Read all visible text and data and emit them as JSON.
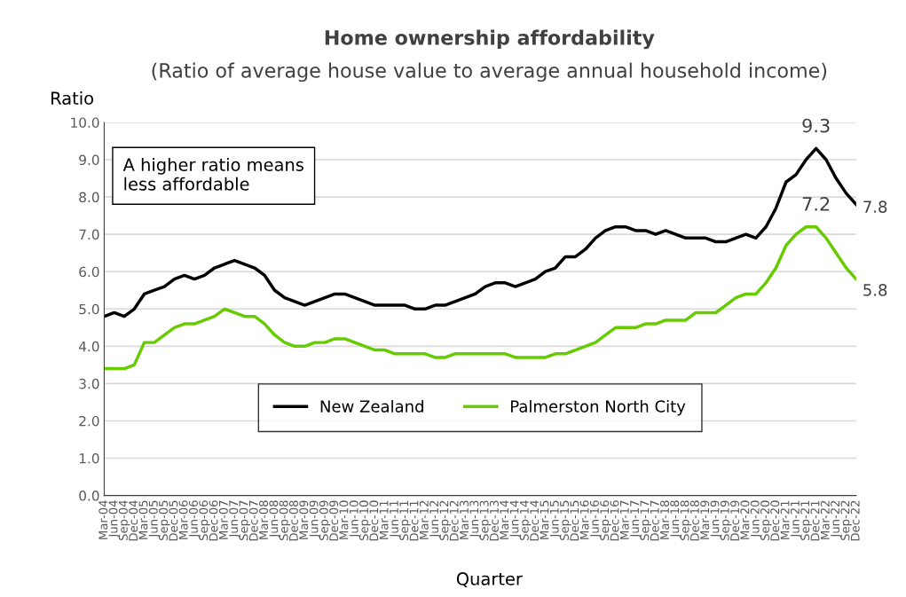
{
  "chart_data": {
    "type": "line",
    "title": "Home ownership affordability",
    "subtitle": "(Ratio of average house value to average annual household income)",
    "xlabel": "Quarter",
    "ylabel": "Ratio",
    "categories": [
      "Mar-04",
      "Jun-04",
      "Sep-04",
      "Dec-04",
      "Mar-05",
      "Jun-05",
      "Sep-05",
      "Dec-05",
      "Mar-06",
      "Jun-06",
      "Sep-06",
      "Dec-06",
      "Mar-07",
      "Jun-07",
      "Sep-07",
      "Dec-07",
      "Mar-08",
      "Jun-08",
      "Sep-08",
      "Dec-08",
      "Mar-09",
      "Jun-09",
      "Sep-09",
      "Dec-09",
      "Mar-10",
      "Jun-10",
      "Sep-10",
      "Dec-10",
      "Mar-11",
      "Jun-11",
      "Sep-11",
      "Dec-11",
      "Mar-12",
      "Jun-12",
      "Sep-12",
      "Dec-12",
      "Mar-13",
      "Jun-13",
      "Sep-13",
      "Dec-13",
      "Mar-14",
      "Jun-14",
      "Sep-14",
      "Dec-14",
      "Mar-15",
      "Jun-15",
      "Sep-15",
      "Dec-15",
      "Mar-16",
      "Jun-16",
      "Sep-16",
      "Dec-16",
      "Mar-17",
      "Jun-17",
      "Sep-17",
      "Dec-17",
      "Mar-18",
      "Jun-18",
      "Sep-18",
      "Dec-18",
      "Mar-19",
      "Jun-19",
      "Sep-19",
      "Dec-19",
      "Mar-20",
      "Jun-20",
      "Sep-20",
      "Dec-20",
      "Mar-21",
      "Jun-21",
      "Sep-21",
      "Dec-21",
      "Mar-22",
      "Jun-22",
      "Sep-22",
      "Dec-22"
    ],
    "series": [
      {
        "name": "New Zealand",
        "color": "#000000",
        "values": [
          4.8,
          4.9,
          4.8,
          5.0,
          5.4,
          5.5,
          5.6,
          5.8,
          5.9,
          5.8,
          5.9,
          6.1,
          6.2,
          6.3,
          6.2,
          6.1,
          5.9,
          5.5,
          5.3,
          5.2,
          5.1,
          5.2,
          5.3,
          5.4,
          5.4,
          5.3,
          5.2,
          5.1,
          5.1,
          5.1,
          5.1,
          5.0,
          5.0,
          5.1,
          5.1,
          5.2,
          5.3,
          5.4,
          5.6,
          5.7,
          5.7,
          5.6,
          5.7,
          5.8,
          6.0,
          6.1,
          6.4,
          6.4,
          6.6,
          6.9,
          7.1,
          7.2,
          7.2,
          7.1,
          7.1,
          7.0,
          7.1,
          7.0,
          6.9,
          6.9,
          6.9,
          6.8,
          6.8,
          6.9,
          7.0,
          6.9,
          7.2,
          7.7,
          8.4,
          8.6,
          9.0,
          9.3,
          9.0,
          8.5,
          8.1,
          7.8
        ],
        "value_labels": [
          null,
          null,
          null,
          null,
          null,
          null,
          null,
          null,
          null,
          null,
          null,
          null,
          null,
          null,
          null,
          null,
          null,
          null,
          null,
          null,
          null,
          null,
          null,
          null,
          null,
          null,
          null,
          null,
          null,
          null,
          null,
          null,
          null,
          null,
          null,
          null,
          null,
          null,
          null,
          null,
          null,
          null,
          null,
          null,
          null,
          null,
          null,
          null,
          null,
          null,
          null,
          null,
          null,
          null,
          null,
          null,
          null,
          null,
          null,
          null,
          null,
          null,
          null,
          null,
          null,
          null,
          null,
          null,
          null,
          null,
          null,
          "9.3",
          null,
          null,
          null,
          "7.8"
        ]
      },
      {
        "name": "Palmerston North City",
        "color": "#66cc00",
        "values": [
          3.4,
          3.4,
          3.4,
          3.5,
          4.1,
          4.1,
          4.3,
          4.5,
          4.6,
          4.6,
          4.7,
          4.8,
          5.0,
          4.9,
          4.8,
          4.8,
          4.6,
          4.3,
          4.1,
          4.0,
          4.0,
          4.1,
          4.1,
          4.2,
          4.2,
          4.1,
          4.0,
          3.9,
          3.9,
          3.8,
          3.8,
          3.8,
          3.8,
          3.7,
          3.7,
          3.8,
          3.8,
          3.8,
          3.8,
          3.8,
          3.8,
          3.7,
          3.7,
          3.7,
          3.7,
          3.8,
          3.8,
          3.9,
          4.0,
          4.1,
          4.3,
          4.5,
          4.5,
          4.5,
          4.6,
          4.6,
          4.7,
          4.7,
          4.7,
          4.9,
          4.9,
          4.9,
          5.1,
          5.3,
          5.4,
          5.4,
          5.7,
          6.1,
          6.7,
          7.0,
          7.2,
          7.2,
          6.9,
          6.5,
          6.1,
          5.8
        ],
        "value_labels": [
          null,
          null,
          null,
          null,
          null,
          null,
          null,
          null,
          null,
          null,
          null,
          null,
          null,
          null,
          null,
          null,
          null,
          null,
          null,
          null,
          null,
          null,
          null,
          null,
          null,
          null,
          null,
          null,
          null,
          null,
          null,
          null,
          null,
          null,
          null,
          null,
          null,
          null,
          null,
          null,
          null,
          null,
          null,
          null,
          null,
          null,
          null,
          null,
          null,
          null,
          null,
          null,
          null,
          null,
          null,
          null,
          null,
          null,
          null,
          null,
          null,
          null,
          null,
          null,
          null,
          null,
          null,
          null,
          null,
          null,
          null,
          "7.2",
          null,
          null,
          null,
          "5.8"
        ]
      }
    ],
    "ylim": [
      0,
      10
    ],
    "yticks": [
      {
        "value": 0,
        "label": "0.0"
      },
      {
        "value": 1,
        "label": "1.0"
      },
      {
        "value": 2,
        "label": "2.0"
      },
      {
        "value": 3,
        "label": "3.0"
      },
      {
        "value": 4,
        "label": "4.0"
      },
      {
        "value": 5,
        "label": "5.0"
      },
      {
        "value": 6,
        "label": "6.0"
      },
      {
        "value": 7,
        "label": "7.0"
      },
      {
        "value": 8,
        "label": "8.0"
      },
      {
        "value": 9,
        "label": "9.0"
      },
      {
        "value": 10,
        "label": "10.0"
      }
    ],
    "grid": "y",
    "legend": "bottom",
    "marker": "none",
    "line_style": "solid",
    "annotations": [
      "A higher ratio means\nless affordable"
    ]
  }
}
